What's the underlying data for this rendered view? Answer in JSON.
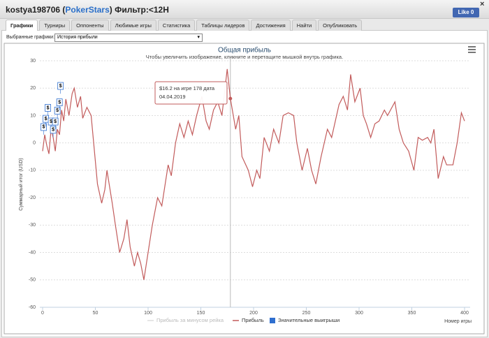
{
  "header": {
    "title_parts": [
      "kostya198706 (",
      "PokerStars",
      ") Фильтр:<12H"
    ],
    "like": "Like 0",
    "close": "×"
  },
  "tabs": [
    "Графики",
    "Турниры",
    "Оппоненты",
    "Любимые игры",
    "Статистика",
    "Таблицы лидеров",
    "Достижения",
    "Найти",
    "Опубликовать"
  ],
  "selector": {
    "label": "Выбранные графики:",
    "value": "История прибыли"
  },
  "chart_data": {
    "type": "line",
    "title": "Общая прибыль",
    "subtitle": "Чтобы увеличить изображение, кликните и перетащите мышкой внутрь графика.",
    "y_label": "Суммарный итог (USD)",
    "x_label": "Номер игры",
    "xlim": [
      0,
      400
    ],
    "xticks": [
      0,
      50,
      100,
      150,
      200,
      250,
      300,
      350,
      400
    ],
    "ylim": [
      -60,
      30
    ],
    "yticks": [
      -60,
      -50,
      -40,
      -30,
      -20,
      -10,
      0,
      10,
      20,
      30
    ],
    "grid": true,
    "legend_inactive": "Прибыль за минусом рейка",
    "series": [
      {
        "name": "Прибыль",
        "color": "#c25b5b",
        "x": [
          0,
          2,
          4,
          6,
          8,
          10,
          12,
          14,
          16,
          18,
          20,
          22,
          25,
          28,
          30,
          33,
          36,
          38,
          42,
          46,
          52,
          56,
          59,
          61,
          66,
          69,
          73,
          77,
          80,
          83,
          87,
          90,
          93,
          96,
          100,
          104,
          109,
          113,
          119,
          122,
          126,
          130,
          134,
          138,
          142,
          146,
          151,
          155,
          158,
          162,
          166,
          170,
          175,
          178,
          183,
          186,
          189,
          195,
          199,
          203,
          206,
          210,
          215,
          219,
          224,
          228,
          233,
          238,
          241,
          246,
          251,
          255,
          259,
          264,
          270,
          274,
          281,
          285,
          289,
          292,
          296,
          301,
          304,
          307,
          311,
          315,
          319,
          324,
          327,
          334,
          338,
          342,
          347,
          352,
          356,
          360,
          365,
          368,
          371,
          375,
          380,
          383,
          389,
          393,
          397,
          400
        ],
        "values": [
          -3,
          3,
          -1,
          -4,
          5,
          2,
          -3,
          5,
          3,
          12,
          8,
          16,
          10,
          18,
          20,
          13,
          17,
          9,
          13,
          10,
          -15,
          -22,
          -17,
          -10,
          -22,
          -30,
          -40,
          -35,
          -28,
          -38,
          -45,
          -40,
          -44,
          -50,
          -40,
          -30,
          -20,
          -23,
          -8,
          -12,
          0,
          7,
          2,
          8,
          3,
          10,
          17,
          8,
          5,
          12,
          15,
          10,
          27,
          16.2,
          5,
          10,
          -5,
          -10,
          -16,
          -10,
          -13,
          2,
          -3,
          5,
          0,
          10,
          11,
          10,
          0,
          -10,
          -2,
          -10,
          -15,
          -5,
          5,
          2,
          14,
          17,
          12,
          25,
          15,
          20,
          10,
          7,
          2,
          7,
          8,
          12,
          10,
          15,
          5,
          0,
          -3,
          -10,
          2,
          1,
          2,
          0,
          5,
          -13,
          -5,
          -8,
          -8,
          0,
          11,
          8
        ]
      },
      {
        "name": "Значительные выигрыши",
        "color": "#2f6fcf",
        "flag_label": "$",
        "x": [
          1,
          3,
          5,
          8,
          10,
          12,
          14,
          16,
          17
        ],
        "values": [
          3,
          6,
          10,
          5,
          2,
          5,
          9,
          12,
          18
        ]
      }
    ],
    "tooltip": {
      "x": 178,
      "value": 16.2,
      "lines": [
        "$16.2 на игре 178 дата",
        "04.04.2019"
      ]
    }
  }
}
